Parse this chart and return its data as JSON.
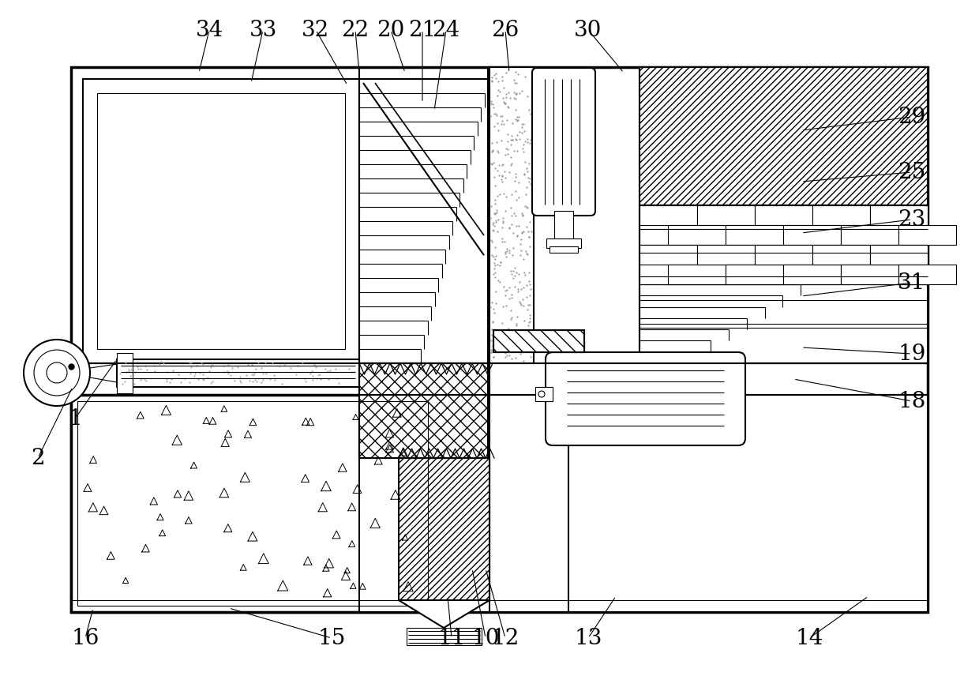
{
  "bg_color": "#ffffff",
  "lw_main": 1.5,
  "lw_thin": 0.8,
  "lw_thick": 2.5,
  "annotations": [
    [
      "34",
      265,
      38,
      252,
      92
    ],
    [
      "33",
      333,
      38,
      318,
      105
    ],
    [
      "32",
      400,
      38,
      440,
      108
    ],
    [
      "22",
      450,
      38,
      455,
      92
    ],
    [
      "20",
      495,
      38,
      513,
      92
    ],
    [
      "21",
      535,
      38,
      535,
      130
    ],
    [
      "24",
      565,
      38,
      550,
      140
    ],
    [
      "26",
      640,
      38,
      645,
      92
    ],
    [
      "30",
      745,
      38,
      790,
      92
    ],
    [
      "29",
      1155,
      148,
      1015,
      165
    ],
    [
      "25",
      1155,
      218,
      1015,
      230
    ],
    [
      "23",
      1155,
      278,
      1015,
      295
    ],
    [
      "31",
      1155,
      358,
      1015,
      375
    ],
    [
      "19",
      1155,
      448,
      1015,
      440
    ],
    [
      "18",
      1155,
      508,
      1005,
      480
    ],
    [
      "14",
      1025,
      808,
      1100,
      755
    ],
    [
      "13",
      745,
      808,
      780,
      755
    ],
    [
      "12",
      640,
      808,
      615,
      720
    ],
    [
      "10",
      615,
      808,
      598,
      720
    ],
    [
      "11",
      572,
      808,
      567,
      755
    ],
    [
      "15",
      420,
      808,
      290,
      770
    ],
    [
      "16",
      108,
      808,
      118,
      770
    ],
    [
      "1",
      95,
      530,
      148,
      455
    ],
    [
      "2",
      48,
      580,
      92,
      490
    ]
  ]
}
